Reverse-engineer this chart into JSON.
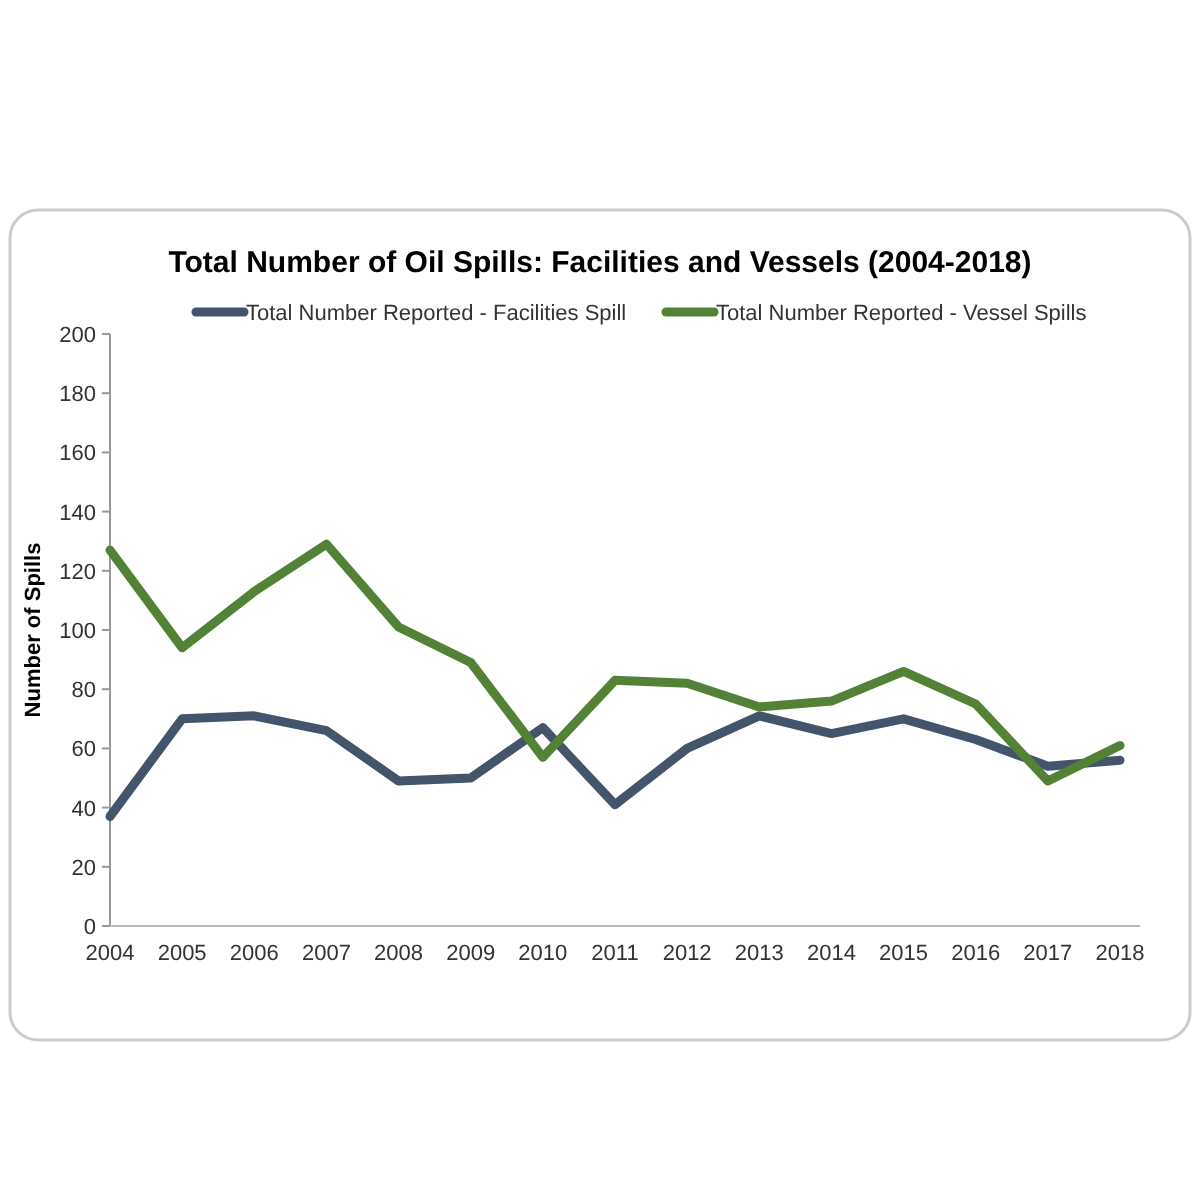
{
  "chart_data": {
    "type": "line",
    "title": "Total Number of Oil Spills: Facilities and Vessels (2004-2018)",
    "ylabel": "Number of Spills",
    "categories": [
      "2004",
      "2005",
      "2006",
      "2007",
      "2008",
      "2009",
      "2010",
      "2011",
      "2012",
      "2013",
      "2014",
      "2015",
      "2016",
      "2017",
      "2018"
    ],
    "series": [
      {
        "name": "Total Number Reported - Facilities Spill",
        "color": "#44546a",
        "values": [
          37,
          70,
          71,
          66,
          49,
          50,
          67,
          41,
          60,
          71,
          65,
          70,
          63,
          54,
          56
        ]
      },
      {
        "name": "Total Number Reported - Vessel Spills",
        "color": "#538135",
        "values": [
          127,
          94,
          113,
          129,
          101,
          89,
          57,
          83,
          82,
          74,
          76,
          86,
          75,
          49,
          61
        ]
      }
    ],
    "ylim": [
      0,
      200
    ],
    "yticks": [
      0,
      20,
      40,
      60,
      80,
      100,
      120,
      140,
      160,
      180,
      200
    ],
    "grid": false,
    "legend": "top",
    "marker": "none",
    "line_style": "solid"
  }
}
